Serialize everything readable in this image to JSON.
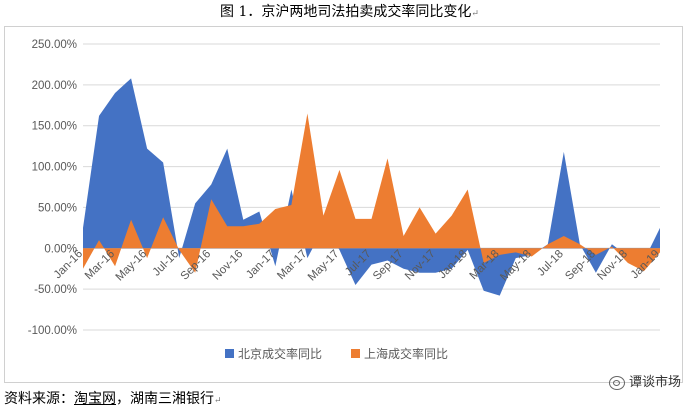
{
  "figure": {
    "title": "图 1．京沪两地司法拍卖成交率同比变化",
    "return_mark": "↵"
  },
  "source": {
    "prefix": "资料来源：",
    "underlined": "淘宝网",
    "suffix": "，湖南三湘银行",
    "return_mark": "↵"
  },
  "watermark": {
    "text": "谭谈市场"
  },
  "colors": {
    "beijing": "#4472C4",
    "shanghai": "#ED7D31",
    "axis_text": "#595959",
    "grid": "#d9d9d9",
    "zero_line": "#bfbfbf"
  },
  "chart_data": {
    "type": "area",
    "title": "",
    "xlabel": "",
    "ylabel": "",
    "ylim": [
      -1.0,
      2.5
    ],
    "y_ticks": [
      -1.0,
      -0.5,
      0.0,
      0.5,
      1.0,
      1.5,
      2.0,
      2.5
    ],
    "y_tick_labels": [
      "-100.00%",
      "-50.00%",
      "0.00%",
      "50.00%",
      "100.00%",
      "150.00%",
      "200.00%",
      "250.00%"
    ],
    "grid": true,
    "legend_position": "bottom",
    "x": [
      "Jan-16",
      "Feb-16",
      "Mar-16",
      "Apr-16",
      "May-16",
      "Jun-16",
      "Jul-16",
      "Aug-16",
      "Sep-16",
      "Oct-16",
      "Nov-16",
      "Dec-16",
      "Jan-17",
      "Feb-17",
      "Mar-17",
      "Apr-17",
      "May-17",
      "Jun-17",
      "Jul-17",
      "Aug-17",
      "Sep-17",
      "Oct-17",
      "Nov-17",
      "Dec-17",
      "Jan-18",
      "Feb-18",
      "Mar-18",
      "Apr-18",
      "May-18",
      "Jun-18",
      "Jul-18",
      "Aug-18",
      "Sep-18",
      "Oct-18",
      "Nov-18",
      "Dec-18",
      "Jan-19"
    ],
    "x_tick_labels": [
      "Jan-16",
      "Mar-16",
      "May-16",
      "Jul-16",
      "Sep-16",
      "Nov-16",
      "Jan-17",
      "Mar-17",
      "May-17",
      "Jul-17",
      "Sep-17",
      "Nov-17",
      "Jan-18",
      "Mar-18",
      "May-18",
      "Jul-18",
      "Sep-18",
      "Nov-18",
      "Jan-19"
    ],
    "series": [
      {
        "name": "北京成交率同比",
        "color_key": "beijing",
        "values": [
          0.25,
          1.62,
          1.9,
          2.08,
          1.22,
          1.05,
          -0.12,
          0.55,
          0.78,
          1.22,
          0.35,
          0.45,
          -0.22,
          0.72,
          -0.12,
          0.25,
          -0.02,
          -0.45,
          -0.2,
          -0.15,
          -0.25,
          -0.3,
          -0.3,
          -0.25,
          -0.02,
          -0.52,
          -0.58,
          -0.12,
          -0.08,
          0.05,
          1.18,
          0.05,
          -0.3,
          0.05,
          -0.1,
          -0.15,
          0.25
        ]
      },
      {
        "name": "上海成交率同比",
        "color_key": "shanghai",
        "values": [
          -0.25,
          0.1,
          -0.22,
          0.35,
          -0.12,
          0.38,
          -0.02,
          -0.3,
          0.6,
          0.27,
          0.27,
          0.3,
          0.48,
          0.53,
          1.65,
          0.4,
          0.96,
          0.36,
          0.36,
          1.1,
          0.15,
          0.5,
          0.18,
          0.4,
          0.72,
          -0.18,
          -0.08,
          -0.05,
          -0.1,
          0.05,
          0.15,
          0.05,
          -0.08,
          0.02,
          -0.18,
          -0.28,
          -0.05
        ]
      }
    ]
  }
}
